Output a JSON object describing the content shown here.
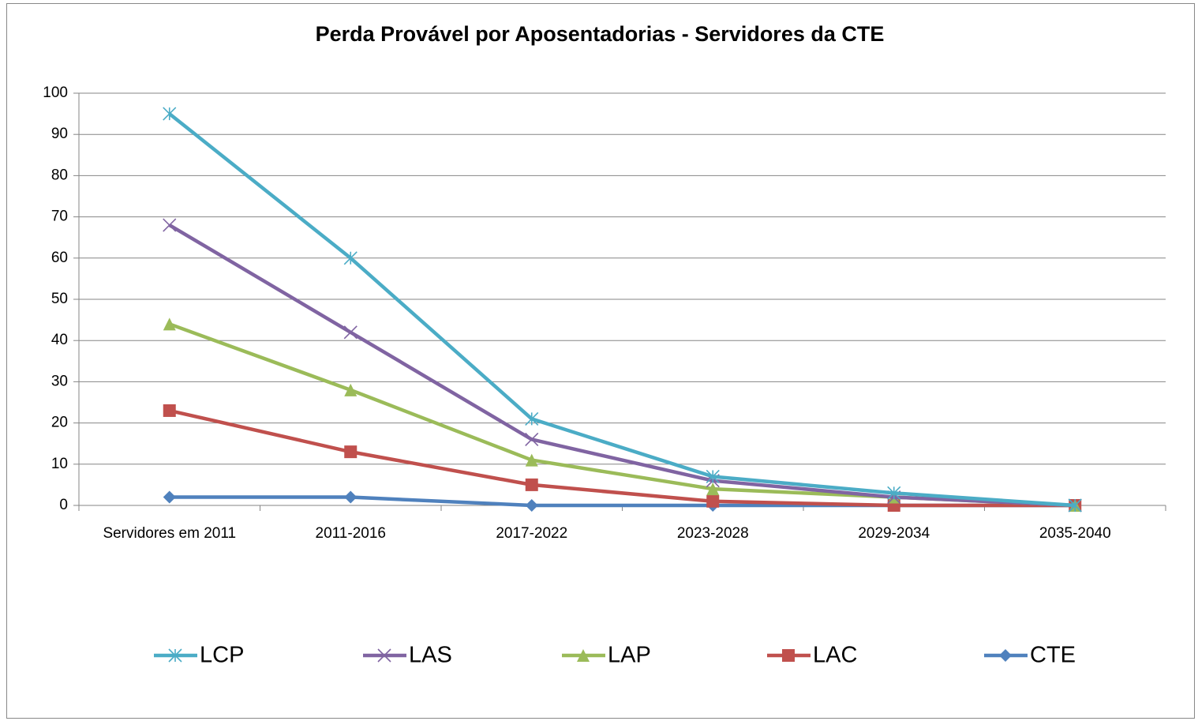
{
  "chart_data": {
    "type": "line",
    "title": "Perda Provável por Aposentadorias - Servidores da CTE",
    "categories": [
      "Servidores em 2011",
      "2011-2016",
      "2017-2022",
      "2023-2028",
      "2029-2034",
      "2035-2040"
    ],
    "series": [
      {
        "name": "LCP",
        "color": "#4bacc6",
        "marker": "asterisk",
        "values": [
          95,
          60,
          21,
          7,
          3,
          0
        ]
      },
      {
        "name": "LAS",
        "color": "#8064a2",
        "marker": "x",
        "values": [
          68,
          42,
          16,
          6,
          2,
          0
        ]
      },
      {
        "name": "LAP",
        "color": "#9bbb59",
        "marker": "triangle",
        "values": [
          44,
          28,
          11,
          4,
          2,
          0
        ]
      },
      {
        "name": "LAC",
        "color": "#c0504d",
        "marker": "square",
        "values": [
          23,
          13,
          5,
          1,
          0,
          0
        ]
      },
      {
        "name": "CTE",
        "color": "#4f81bd",
        "marker": "diamond",
        "values": [
          2,
          2,
          0,
          0,
          0,
          0
        ]
      }
    ],
    "ylim": [
      0,
      100
    ],
    "yticks": [
      0,
      10,
      20,
      30,
      40,
      50,
      60,
      70,
      80,
      90,
      100
    ],
    "grid": true,
    "legend": "bottom"
  }
}
